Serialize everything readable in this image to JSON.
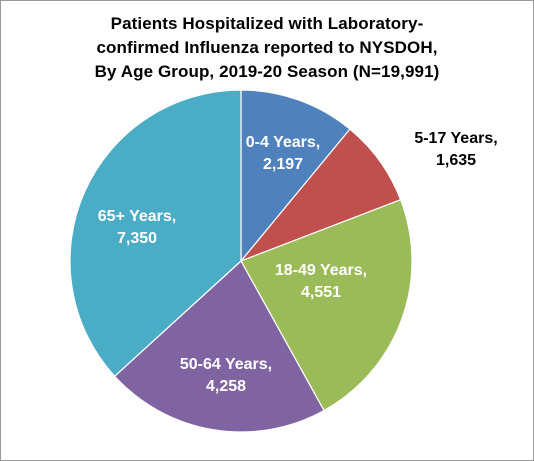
{
  "chart_data": {
    "type": "pie",
    "title": [
      "Patients Hospitalized with Laboratory-",
      "confirmed Influenza reported to NYSDOH,",
      "By Age Group, 2019-20 Season (N=19,991)"
    ],
    "slices": [
      {
        "label": "0-4 Years,",
        "value_text": "2,197",
        "value": 2197,
        "color": "#4f81bd",
        "label_color": "#ffffff",
        "outside": false
      },
      {
        "label": "5-17 Years,",
        "value_text": "1,635",
        "value": 1635,
        "color": "#c0504d",
        "label_color": "#000000",
        "outside": true
      },
      {
        "label": "18-49 Years,",
        "value_text": "4,551",
        "value": 4551,
        "color": "#9bbb59",
        "label_color": "#ffffff",
        "outside": false
      },
      {
        "label": "50-64 Years,",
        "value_text": "4,258",
        "value": 4258,
        "color": "#8064a2",
        "label_color": "#ffffff",
        "outside": false
      },
      {
        "label": "65+ Years,",
        "value_text": "7,350",
        "value": 7350,
        "color": "#4bacc6",
        "label_color": "#ffffff",
        "outside": false
      }
    ],
    "start_angle": "12 o'clock",
    "direction": "clockwise",
    "legend": "none"
  }
}
